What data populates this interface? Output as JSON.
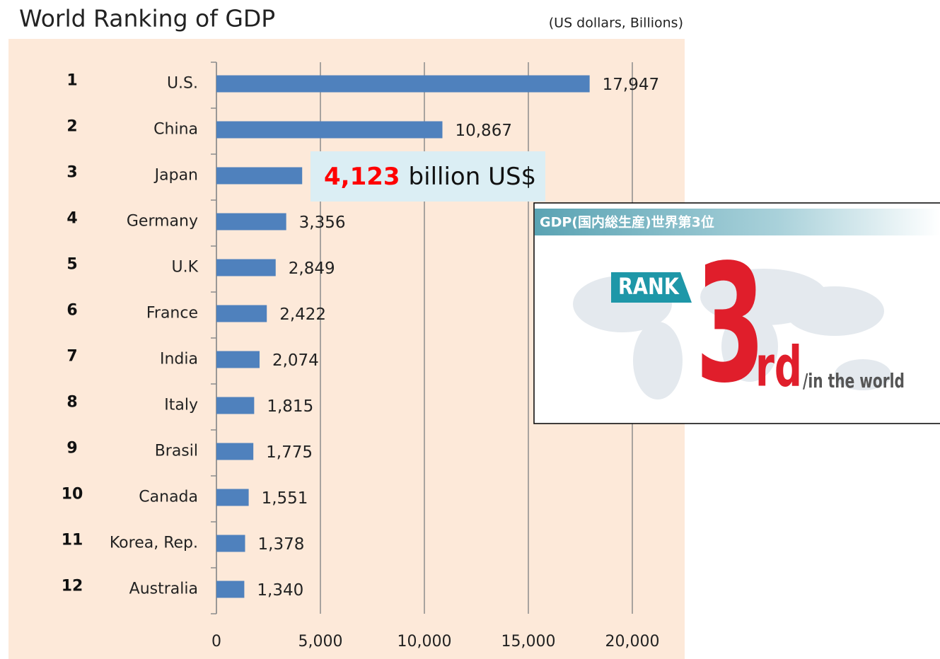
{
  "chart_data": {
    "type": "bar",
    "orientation": "horizontal",
    "title": "World Ranking of GDP",
    "subtitle": "(US dollars, Billions)",
    "ranks": [
      "1",
      "2",
      "3",
      "4",
      "5",
      "6",
      "7",
      "8",
      "9",
      "10",
      "11",
      "12"
    ],
    "categories": [
      "U.S.",
      "China",
      "Japan",
      "Germany",
      "U.K",
      "France",
      "India",
      "Italy",
      "Brasil",
      "Canada",
      "Korea, Rep.",
      "Australia"
    ],
    "values": [
      17947,
      10867,
      4123,
      3356,
      2849,
      2422,
      2074,
      1815,
      1775,
      1551,
      1378,
      1340
    ],
    "value_labels": [
      "17,947",
      "10,867",
      "4,123",
      "3,356",
      "2,849",
      "2,422",
      "2,074",
      "1,815",
      "1,775",
      "1,551",
      "1,378",
      "1,340"
    ],
    "color": "#4f81bd",
    "xlim": [
      0,
      20000
    ],
    "xticks": [
      0,
      {
        "value": 5000,
        "label": "5,000"
      },
      {
        "value": 10000,
        "label": "10,000"
      },
      {
        "value": 15000,
        "label": "15,000"
      },
      {
        "value": 20000,
        "label": "20,000"
      }
    ],
    "grid": true,
    "highlight": "Japan",
    "callout_unit": "billion US$"
  },
  "inset": {
    "header": "GDP(国内総生産)世界第3位",
    "badge": "RANK",
    "big": "3",
    "suffix": "rd",
    "tagline": "/in the world"
  }
}
